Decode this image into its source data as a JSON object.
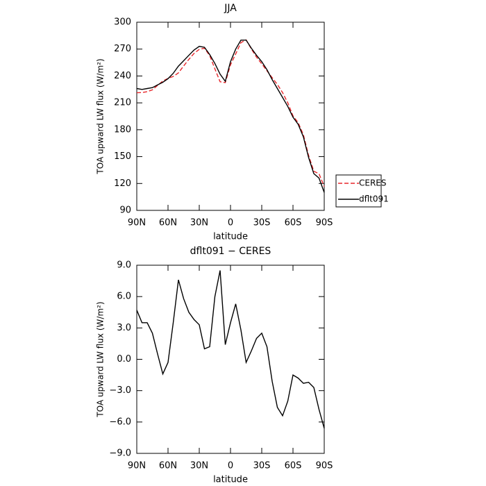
{
  "chart_data": [
    {
      "type": "line",
      "title": "JJA",
      "xlabel": "latitude",
      "ylabel": "TOA upward LW flux (W/m²)",
      "x": [
        90,
        85,
        80,
        75,
        70,
        65,
        60,
        55,
        50,
        45,
        40,
        35,
        30,
        25,
        20,
        15,
        10,
        5,
        0,
        -5,
        -10,
        -15,
        -20,
        -25,
        -30,
        -35,
        -40,
        -45,
        -50,
        -55,
        -60,
        -65,
        -70,
        -75,
        -80,
        -85,
        -90
      ],
      "series": [
        {
          "name": "CERES",
          "color": "#e8262a",
          "linestyle": "dashed",
          "values": [
            221.3,
            221.5,
            222.5,
            224.5,
            229.5,
            234.4,
            237.3,
            239.5,
            243.4,
            251.2,
            258.5,
            265.2,
            269.7,
            271,
            262.8,
            248,
            233.5,
            232.6,
            252.5,
            264.7,
            277.2,
            280.3,
            270.2,
            261,
            253.5,
            245.8,
            238.1,
            230.6,
            221.4,
            210,
            195.5,
            187.8,
            174.3,
            151.2,
            133.7,
            130.8,
            116.6
          ]
        },
        {
          "name": "dflt091",
          "color": "#000000",
          "linestyle": "solid",
          "values": [
            226,
            225,
            226,
            227,
            230,
            233,
            237,
            243,
            251,
            257,
            263,
            269,
            273,
            272,
            264,
            254,
            242,
            234,
            256,
            270,
            280,
            280,
            271,
            263,
            256,
            247,
            236,
            226,
            216,
            206,
            194,
            186,
            172,
            149,
            131,
            126,
            110
          ]
        }
      ],
      "xlim": [
        90,
        -90
      ],
      "xticks": [
        {
          "value": 90,
          "label": "90N"
        },
        {
          "value": 60,
          "label": "60N"
        },
        {
          "value": 30,
          "label": "30N"
        },
        0,
        {
          "value": -30,
          "label": "30S"
        },
        {
          "value": -60,
          "label": "60S"
        },
        {
          "value": -90,
          "label": "90S"
        }
      ],
      "ylim": [
        90,
        300
      ],
      "yticks": [
        90,
        120,
        150,
        180,
        210,
        240,
        270,
        300
      ],
      "legend": "right"
    },
    {
      "type": "line",
      "title": "dflt091 − CERES",
      "xlabel": "latitude",
      "ylabel": "TOA upward LW flux (W/m²)",
      "x": [
        90,
        85,
        80,
        75,
        70,
        65,
        60,
        55,
        50,
        45,
        40,
        35,
        30,
        25,
        20,
        15,
        10,
        5,
        0,
        -5,
        -10,
        -15,
        -20,
        -25,
        -30,
        -35,
        -40,
        -45,
        -50,
        -55,
        -60,
        -65,
        -70,
        -75,
        -80,
        -85,
        -90
      ],
      "series": [
        {
          "color": "#000000",
          "linestyle": "solid",
          "values": [
            4.7,
            3.5,
            3.5,
            2.5,
            0.5,
            -1.4,
            -0.3,
            3.5,
            7.6,
            5.8,
            4.5,
            3.8,
            3.3,
            1.0,
            1.2,
            6.0,
            8.5,
            1.4,
            3.5,
            5.3,
            2.8,
            -0.3,
            0.8,
            2.0,
            2.5,
            1.2,
            -2.1,
            -4.6,
            -5.4,
            -4.0,
            -1.5,
            -1.8,
            -2.3,
            -2.2,
            -2.7,
            -4.8,
            -6.6
          ]
        }
      ],
      "xlim": [
        90,
        -90
      ],
      "xticks": [
        {
          "value": 90,
          "label": "90N"
        },
        {
          "value": 60,
          "label": "60N"
        },
        {
          "value": 30,
          "label": "30N"
        },
        0,
        {
          "value": -30,
          "label": "30S"
        },
        {
          "value": -60,
          "label": "60S"
        },
        {
          "value": -90,
          "label": "90S"
        }
      ],
      "ylim": [
        -9,
        9
      ],
      "yticks": [
        {
          "value": -9,
          "label": "−9.0"
        },
        {
          "value": -6,
          "label": "−6.0"
        },
        {
          "value": -3,
          "label": "−3.0"
        },
        {
          "value": 0,
          "label": "0.0"
        },
        {
          "value": 3,
          "label": "3.0"
        },
        {
          "value": 6,
          "label": "6.0"
        },
        {
          "value": 9,
          "label": "9.0"
        }
      ]
    }
  ]
}
